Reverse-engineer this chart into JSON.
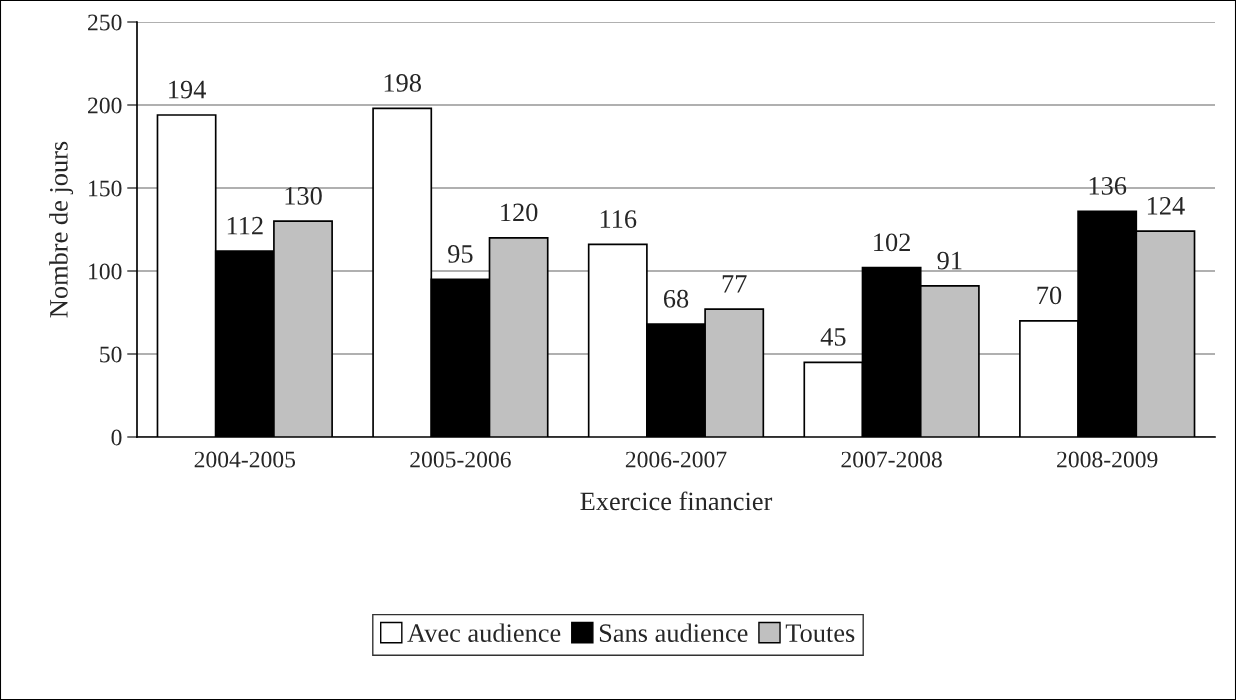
{
  "chart_data": {
    "type": "bar",
    "xlabel": "Exercice financier",
    "ylabel": "Nombre de jours",
    "categories": [
      "2004-2005",
      "2005-2006",
      "2006-2007",
      "2007-2008",
      "2008-2009"
    ],
    "series": [
      {
        "name": "Avec audience",
        "color": "#ffffff",
        "values": [
          194,
          198,
          116,
          45,
          70
        ]
      },
      {
        "name": "Sans audience",
        "color": "#000000",
        "values": [
          112,
          95,
          68,
          102,
          136
        ]
      },
      {
        "name": "Toutes",
        "color": "#c0c0c0",
        "values": [
          130,
          120,
          77,
          91,
          124
        ]
      }
    ],
    "ylim": [
      0,
      250
    ],
    "yticks": [
      0,
      50,
      100,
      150,
      200,
      250
    ],
    "grid": "y",
    "legend": "bottom",
    "data_labels": true
  }
}
